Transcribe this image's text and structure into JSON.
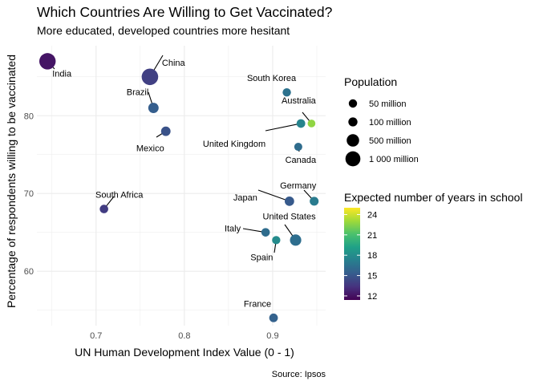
{
  "chart_data": {
    "type": "scatter",
    "title": "Which Countries Are Willing to Get Vaccinated?",
    "subtitle": "More educated, developed countries more hesitant",
    "xlabel": "UN Human Development Index Value (0 - 1)",
    "ylabel": "Percentage of respondents willing to be vaccinated",
    "caption": "Source: Ipsos",
    "xlim": [
      0.633,
      0.96
    ],
    "ylim": [
      53,
      89
    ],
    "x_ticks": [
      0.7,
      0.8,
      0.9
    ],
    "x_tick_labels": [
      "0.7",
      "0.8",
      "0.9"
    ],
    "y_ticks": [
      60,
      70,
      80
    ],
    "y_tick_labels": [
      "60",
      "70",
      "80"
    ],
    "grid": true,
    "size_legend": {
      "title": "Population",
      "entries": [
        {
          "label": "50 million",
          "value": 50
        },
        {
          "label": "100 million",
          "value": 100
        },
        {
          "label": "500 million",
          "value": 500
        },
        {
          "label": "1 000 million",
          "value": 1000
        }
      ]
    },
    "color_legend": {
      "title": "Expected number of years in school",
      "range": [
        11.4,
        25
      ],
      "ticks": [
        12,
        15,
        18,
        21,
        24
      ],
      "tick_labels": [
        "12",
        "15",
        "18",
        "21",
        "24"
      ]
    },
    "points": [
      {
        "country": "India",
        "hdi": 0.645,
        "pct": 87,
        "population": 1366,
        "school_years": 12.2
      },
      {
        "country": "China",
        "hdi": 0.761,
        "pct": 85,
        "population": 1398,
        "school_years": 14.0
      },
      {
        "country": "Brazil",
        "hdi": 0.765,
        "pct": 81,
        "population": 211,
        "school_years": 15.4
      },
      {
        "country": "Mexico",
        "hdi": 0.779,
        "pct": 78,
        "population": 128,
        "school_years": 14.8
      },
      {
        "country": "South Africa",
        "hdi": 0.709,
        "pct": 68,
        "population": 59,
        "school_years": 13.8
      },
      {
        "country": "South Korea",
        "hdi": 0.916,
        "pct": 83,
        "population": 52,
        "school_years": 16.5
      },
      {
        "country": "Australia",
        "hdi": 0.944,
        "pct": 79,
        "population": 25,
        "school_years": 22.7
      },
      {
        "country": "United Kingdom",
        "hdi": 0.932,
        "pct": 79,
        "population": 67,
        "school_years": 17.5
      },
      {
        "country": "Canada",
        "hdi": 0.929,
        "pct": 76,
        "population": 38,
        "school_years": 16.2
      },
      {
        "country": "Japan",
        "hdi": 0.919,
        "pct": 69,
        "population": 126,
        "school_years": 15.2
      },
      {
        "country": "Germany",
        "hdi": 0.947,
        "pct": 69,
        "population": 83,
        "school_years": 17.0
      },
      {
        "country": "Italy",
        "hdi": 0.892,
        "pct": 65,
        "population": 60,
        "school_years": 16.2
      },
      {
        "country": "United States",
        "hdi": 0.926,
        "pct": 64,
        "population": 328,
        "school_years": 16.3
      },
      {
        "country": "Spain",
        "hdi": 0.904,
        "pct": 64,
        "population": 47,
        "school_years": 17.9
      },
      {
        "country": "France",
        "hdi": 0.901,
        "pct": 54,
        "population": 67,
        "school_years": 15.6
      }
    ]
  },
  "style": {
    "panel_background": "#ffffff",
    "grid_color": "#ebebeb",
    "leader_color": "#000000",
    "palette": [
      "#440154",
      "#46327e",
      "#365c8d",
      "#277f8e",
      "#1fa187",
      "#4ac16d",
      "#a0da39",
      "#fde725"
    ]
  }
}
